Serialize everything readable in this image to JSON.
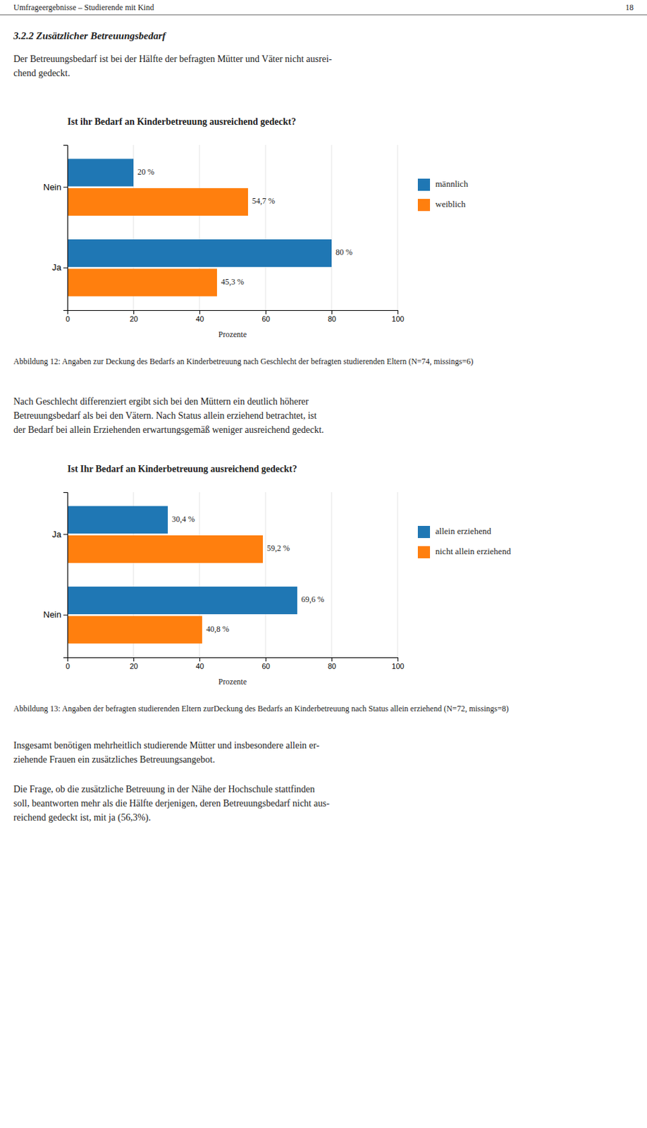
{
  "page": {
    "header_left": "Umfrageergebnisse – Studierende mit Kind",
    "header_right": "18",
    "section_title": "3.2.2   Zusätzlicher Betreuungsbedarf",
    "intro": [
      "Der Betreuungsbedarf ist bei der Hälfte der befragten Mütter und Väter nicht ausrei-",
      "chend gedeckt."
    ],
    "middle": [
      "Nach Geschlecht differenziert ergibt sich bei den Müttern ein deutlich höherer",
      "Betreuungsbedarf als bei den Vätern. Nach Status allein erziehend betrachtet, ist",
      "der Bedarf bei allein Erziehenden erwartungsgemäß weniger ausreichend gedeckt."
    ],
    "footer1": [
      "Insgesamt benötigen mehrheitlich studierende Mütter und insbesondere allein er-",
      "ziehende Frauen ein zusätzliches Betreuungsangebot."
    ],
    "footer2": [
      "Die Frage, ob die zusätzliche Betreuung in der Nähe der Hochschule stattfinden",
      "soll, beantworten mehr als die Hälfte derjenigen, deren Betreuungsbedarf nicht aus-",
      "reichend gedeckt ist, mit ja (56,3%)."
    ]
  },
  "chart_data": [
    {
      "type": "bar",
      "orientation": "horizontal",
      "title": "Ist ihr Bedarf an Kinderbetreuung ausreichend gedeckt?",
      "caption": "Abbildung 12: Angaben zur Deckung des Bedarfs an Kinderbetreuung nach Geschlecht der befragten studierenden Eltern (N=74, missings=6)",
      "categories": [
        "Nein",
        "Ja"
      ],
      "series": [
        {
          "name": "männlich",
          "values": [
            20.0,
            80.0
          ],
          "value_labels": [
            "20 %",
            "80 %"
          ]
        },
        {
          "name": "weiblich",
          "values": [
            54.7,
            45.3
          ],
          "value_labels": [
            "54,7 %",
            "45,3 %"
          ]
        }
      ],
      "xlabel": "Prozente",
      "xlim": [
        0,
        100
      ],
      "xticks": [
        0,
        20,
        40,
        60,
        80,
        100
      ],
      "grid": true,
      "legend": "right",
      "data_labels": true
    },
    {
      "type": "bar",
      "orientation": "horizontal",
      "title": "Ist Ihr Bedarf an Kinderbetreuung ausreichend gedeckt?",
      "caption": "Abbildung 13: Angaben der befragten studierenden Eltern zurDeckung des Bedarfs an Kinderbetreuung nach Status allein erziehend (N=72, missings=8)",
      "categories": [
        "Ja",
        "Nein"
      ],
      "series": [
        {
          "name": "allein erziehend",
          "values": [
            30.4,
            69.6
          ],
          "value_labels": [
            "30,4 %",
            "69,6 %"
          ]
        },
        {
          "name": "nicht allein erziehend",
          "values": [
            59.2,
            40.8
          ],
          "value_labels": [
            "59,2 %",
            "40,8 %"
          ]
        }
      ],
      "xlabel": "Prozente",
      "xlim": [
        0,
        100
      ],
      "xticks": [
        0,
        20,
        40,
        60,
        80,
        100
      ],
      "grid": true,
      "legend": "right",
      "data_labels": true
    }
  ]
}
